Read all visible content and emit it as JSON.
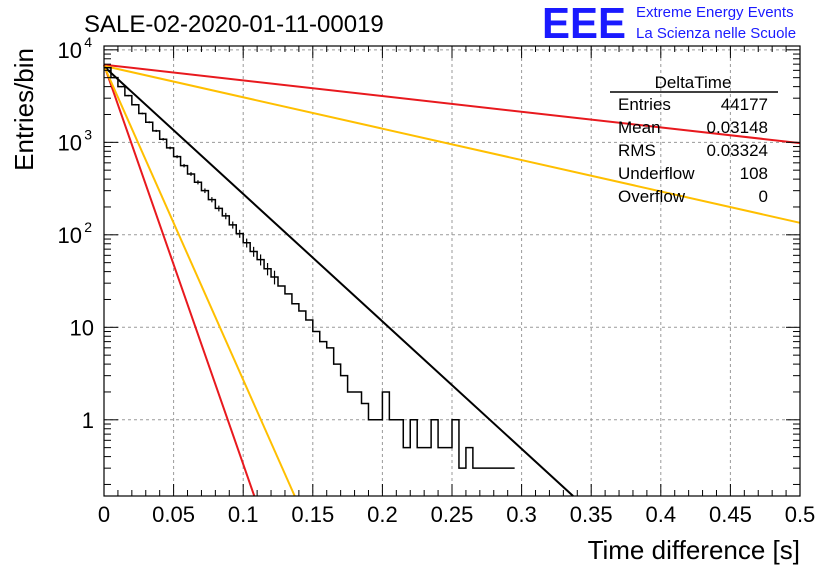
{
  "chart_data": {
    "type": "line",
    "title": "SALE-02-2020-01-11-00019",
    "xlabel": "Time difference [s]",
    "ylabel": "Entries/bin",
    "xlim": [
      0,
      0.5
    ],
    "ylim": [
      0.15,
      11000
    ],
    "y_scale": "log",
    "grid": true,
    "x_ticks": [
      "0",
      "0.05",
      "0.1",
      "0.15",
      "0.2",
      "0.25",
      "0.3",
      "0.35",
      "0.4",
      "0.45",
      "0.5"
    ],
    "y_ticks": [
      {
        "value": 1,
        "label": "1"
      },
      {
        "value": 10,
        "label": "10"
      },
      {
        "value": 100,
        "label": "10",
        "exp": "2"
      },
      {
        "value": 1000,
        "label": "10",
        "exp": "3"
      },
      {
        "value": 10000,
        "label": "10",
        "exp": "4"
      }
    ],
    "histogram": {
      "name": "DeltaTime",
      "color": "#000000",
      "points": [
        [
          0.0,
          6400
        ],
        [
          0.005,
          5000
        ],
        [
          0.01,
          4000
        ],
        [
          0.015,
          3200
        ],
        [
          0.02,
          2550
        ],
        [
          0.025,
          2050
        ],
        [
          0.03,
          1650
        ],
        [
          0.035,
          1330
        ],
        [
          0.04,
          1080
        ],
        [
          0.045,
          870
        ],
        [
          0.05,
          700
        ],
        [
          0.055,
          560
        ],
        [
          0.06,
          455
        ],
        [
          0.065,
          370
        ],
        [
          0.07,
          300
        ],
        [
          0.075,
          240
        ],
        [
          0.08,
          193
        ],
        [
          0.085,
          160
        ],
        [
          0.09,
          128
        ],
        [
          0.095,
          103
        ],
        [
          0.1,
          82
        ],
        [
          0.105,
          66
        ],
        [
          0.11,
          54
        ],
        [
          0.115,
          43
        ],
        [
          0.12,
          35
        ],
        [
          0.125,
          28
        ],
        [
          0.13,
          23
        ],
        [
          0.135,
          18
        ],
        [
          0.14,
          15
        ],
        [
          0.145,
          12
        ],
        [
          0.15,
          9
        ],
        [
          0.155,
          7
        ],
        [
          0.16,
          6
        ],
        [
          0.165,
          4
        ],
        [
          0.17,
          3
        ],
        [
          0.175,
          2
        ],
        [
          0.18,
          2
        ],
        [
          0.185,
          1.5
        ],
        [
          0.19,
          1
        ],
        [
          0.195,
          1
        ],
        [
          0.2,
          2
        ],
        [
          0.205,
          1
        ],
        [
          0.21,
          1
        ],
        [
          0.215,
          0.5
        ],
        [
          0.22,
          1
        ],
        [
          0.225,
          0.5
        ],
        [
          0.23,
          0.5
        ],
        [
          0.235,
          1
        ],
        [
          0.24,
          0.5
        ],
        [
          0.245,
          0.5
        ],
        [
          0.25,
          1
        ],
        [
          0.255,
          0.3
        ],
        [
          0.26,
          0.5
        ],
        [
          0.265,
          0.3
        ],
        [
          0.27,
          0.3
        ],
        [
          0.275,
          0.3
        ],
        [
          0.28,
          0.3
        ],
        [
          0.285,
          0.3
        ],
        [
          0.29,
          0.3
        ]
      ]
    },
    "fit_curves": [
      {
        "color": "#000000",
        "points": [
          [
            0.0,
            6600
          ],
          [
            0.337,
            0.15
          ]
        ]
      },
      {
        "color": "#e8191e",
        "points": [
          [
            0.0,
            6900
          ],
          [
            0.5,
            980
          ]
        ]
      },
      {
        "color": "#ffbf00",
        "points": [
          [
            0.0,
            6700
          ],
          [
            0.5,
            135
          ]
        ]
      },
      {
        "color": "#e8191e",
        "points": [
          [
            0.0,
            6900
          ],
          [
            0.108,
            0.15
          ]
        ]
      },
      {
        "color": "#ffbf00",
        "points": [
          [
            0.0,
            6700
          ],
          [
            0.137,
            0.15
          ]
        ]
      }
    ],
    "stats_box": {
      "name": "DeltaTime",
      "rows": [
        {
          "label": "Entries",
          "value": "44177"
        },
        {
          "label": "Mean",
          "value": "0.03148"
        },
        {
          "label": "RMS",
          "value": "0.03324"
        },
        {
          "label": "Underflow",
          "value": "108"
        },
        {
          "label": "Overflow",
          "value": "0"
        }
      ]
    }
  },
  "logo": {
    "text": "EEE",
    "line1": "Extreme Energy Events",
    "line2": "La Scienza nelle Scuole",
    "color": "#1a1aff"
  }
}
